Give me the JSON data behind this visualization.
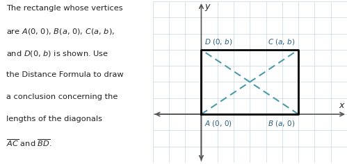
{
  "text_block": [
    "The rectangle whose vertices",
    "are $A$(0, 0), $B$($a$, 0), $C$($a$, $b$),",
    "and $D$(0, $b$) is shown. Use",
    "the Distance Formula to draw",
    "a conclusion concerning the",
    "lengths of the diagonals",
    "$\\overline{AC}$ and $\\overline{BD}$."
  ],
  "rect_color": "#000000",
  "diag_color": "#4a9aaa",
  "grid_color": "#c8d8e0",
  "axis_color": "#555555",
  "label_color": "#2a6080",
  "text_color": "#222222",
  "bg_color": "#ffffff",
  "A": [
    0,
    0
  ],
  "B": [
    3,
    0
  ],
  "C": [
    3,
    2
  ],
  "D": [
    0,
    2
  ],
  "xlim": [
    -1.5,
    4.5
  ],
  "ylim": [
    -1.5,
    3.5
  ],
  "grid_step": 0.5,
  "axis_label_fontsize": 9,
  "point_label_fontsize": 7.5
}
